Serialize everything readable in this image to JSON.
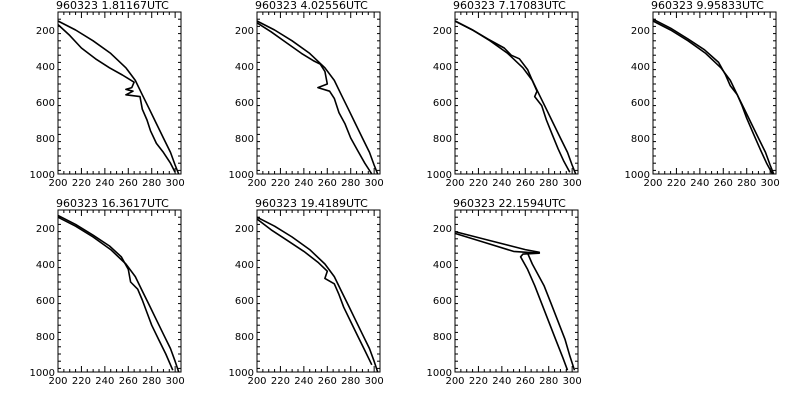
{
  "chart_data": [
    {
      "type": "line",
      "title": "960323   1.81167UTC",
      "xlim": [
        200,
        305
      ],
      "ylim": [
        1000,
        100
      ],
      "xticks": [
        200,
        220,
        240,
        260,
        280,
        300
      ],
      "yticks": [
        200,
        400,
        600,
        800,
        1000
      ],
      "series": [
        {
          "x": [
            200,
            215,
            230,
            245,
            258,
            266,
            272,
            278,
            284,
            290,
            296,
            300,
            303
          ],
          "y": [
            150,
            200,
            260,
            330,
            410,
            480,
            560,
            640,
            720,
            800,
            880,
            950,
            1000
          ]
        },
        {
          "x": [
            200,
            210,
            220,
            232,
            244,
            255,
            265,
            263,
            258,
            264,
            258,
            270,
            272,
            276,
            279,
            284,
            290,
            296,
            300
          ],
          "y": [
            170,
            230,
            300,
            360,
            410,
            450,
            490,
            520,
            530,
            540,
            560,
            570,
            640,
            700,
            760,
            830,
            880,
            940,
            990
          ]
        }
      ]
    },
    {
      "type": "line",
      "title": "960323   4.02556UTC",
      "xlim": [
        200,
        305
      ],
      "ylim": [
        1000,
        100
      ],
      "xticks": [
        200,
        220,
        240,
        260,
        280,
        300
      ],
      "yticks": [
        200,
        400,
        600,
        800,
        1000
      ],
      "series": [
        {
          "x": [
            200,
            215,
            230,
            245,
            258,
            266,
            272,
            278,
            284,
            290,
            296,
            300,
            303
          ],
          "y": [
            150,
            200,
            260,
            330,
            410,
            480,
            560,
            640,
            720,
            800,
            880,
            950,
            1000
          ]
        },
        {
          "x": [
            200,
            212,
            225,
            238,
            248,
            254,
            258,
            260,
            252,
            262,
            266,
            270,
            275,
            280,
            286,
            292,
            298
          ],
          "y": [
            160,
            210,
            270,
            330,
            370,
            390,
            430,
            500,
            520,
            540,
            580,
            660,
            720,
            800,
            870,
            940,
            1000
          ]
        }
      ]
    },
    {
      "type": "line",
      "title": "960323   7.17083UTC",
      "xlim": [
        200,
        305
      ],
      "ylim": [
        1000,
        100
      ],
      "xticks": [
        200,
        220,
        240,
        260,
        280,
        300
      ],
      "yticks": [
        200,
        400,
        600,
        800,
        1000
      ],
      "series": [
        {
          "x": [
            200,
            215,
            230,
            245,
            258,
            266,
            272,
            278,
            284,
            290,
            296,
            300,
            303
          ],
          "y": [
            150,
            200,
            260,
            330,
            410,
            480,
            560,
            640,
            720,
            800,
            880,
            950,
            1000
          ]
        },
        {
          "x": [
            200,
            215,
            228,
            242,
            248,
            255,
            262,
            266,
            270,
            268,
            274,
            278,
            283,
            288,
            293,
            298
          ],
          "y": [
            150,
            200,
            250,
            300,
            340,
            360,
            420,
            480,
            540,
            570,
            620,
            700,
            780,
            860,
            930,
            990
          ]
        }
      ]
    },
    {
      "type": "line",
      "title": "960323   9.95833UTC",
      "xlim": [
        200,
        305
      ],
      "ylim": [
        1000,
        100
      ],
      "xticks": [
        200,
        220,
        240,
        260,
        280,
        300
      ],
      "yticks": [
        200,
        400,
        600,
        800,
        1000
      ],
      "series": [
        {
          "x": [
            200,
            215,
            230,
            245,
            258,
            266,
            272,
            278,
            284,
            290,
            296,
            300,
            303
          ],
          "y": [
            150,
            200,
            260,
            330,
            410,
            480,
            560,
            640,
            720,
            800,
            880,
            950,
            1000
          ]
        },
        {
          "x": [
            200,
            215,
            230,
            244,
            256,
            262,
            266,
            272,
            276,
            280,
            286,
            292,
            297,
            302
          ],
          "y": [
            140,
            190,
            250,
            310,
            380,
            450,
            510,
            560,
            620,
            690,
            780,
            870,
            940,
            1000
          ]
        }
      ]
    },
    {
      "type": "line",
      "title": "960323   16.3617UTC",
      "xlim": [
        200,
        305
      ],
      "ylim": [
        1000,
        100
      ],
      "xticks": [
        200,
        220,
        240,
        260,
        280,
        300
      ],
      "yticks": [
        200,
        400,
        600,
        800,
        1000
      ],
      "series": [
        {
          "x": [
            200,
            215,
            230,
            245,
            258,
            266,
            272,
            278,
            284,
            290,
            296,
            300,
            303
          ],
          "y": [
            140,
            190,
            250,
            320,
            400,
            470,
            550,
            630,
            710,
            790,
            870,
            940,
            1000
          ]
        },
        {
          "x": [
            200,
            215,
            230,
            244,
            254,
            260,
            262,
            268,
            272,
            276,
            280,
            286,
            292,
            298
          ],
          "y": [
            130,
            180,
            240,
            300,
            360,
            430,
            500,
            540,
            600,
            670,
            740,
            820,
            900,
            990
          ]
        }
      ]
    },
    {
      "type": "line",
      "title": "960323   19.4189UTC",
      "xlim": [
        200,
        305
      ],
      "ylim": [
        1000,
        100
      ],
      "xticks": [
        200,
        220,
        240,
        260,
        280,
        300
      ],
      "yticks": [
        200,
        400,
        600,
        800,
        1000
      ],
      "series": [
        {
          "x": [
            200,
            215,
            230,
            245,
            258,
            266,
            272,
            278,
            284,
            290,
            296,
            300,
            303
          ],
          "y": [
            140,
            190,
            250,
            320,
            400,
            470,
            550,
            630,
            710,
            790,
            870,
            940,
            1000
          ]
        },
        {
          "x": [
            200,
            212,
            226,
            240,
            252,
            260,
            258,
            266,
            270,
            274,
            280,
            286,
            292,
            298
          ],
          "y": [
            150,
            210,
            270,
            330,
            390,
            440,
            480,
            510,
            570,
            640,
            720,
            800,
            880,
            960
          ]
        }
      ]
    },
    {
      "type": "line",
      "title": "960323   22.1594UTC",
      "xlim": [
        200,
        305
      ],
      "ylim": [
        1000,
        100
      ],
      "xticks": [
        200,
        220,
        240,
        260,
        280,
        300
      ],
      "yticks": [
        200,
        400,
        600,
        800,
        1000
      ],
      "series": [
        {
          "x": [
            200,
            230,
            260,
            272,
            262,
            266,
            276,
            282,
            288,
            294,
            298,
            302
          ],
          "y": [
            220,
            270,
            320,
            335,
            340,
            400,
            520,
            620,
            720,
            820,
            910,
            990
          ]
        },
        {
          "x": [
            200,
            225,
            250,
            272,
            258,
            256,
            262,
            268,
            274,
            280,
            286,
            292,
            296
          ],
          "y": [
            230,
            280,
            330,
            340,
            345,
            360,
            430,
            520,
            620,
            720,
            820,
            920,
            990
          ]
        }
      ]
    }
  ]
}
